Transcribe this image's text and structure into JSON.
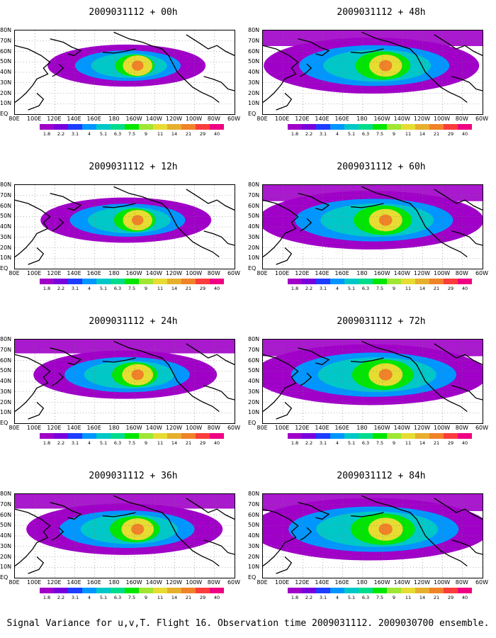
{
  "panels": [
    {
      "title": "2009031112 + 00h",
      "lead_hours": 0,
      "intensity": 0.55,
      "spread": 0.35
    },
    {
      "title": "2009031112 + 12h",
      "lead_hours": 12,
      "intensity": 0.55,
      "spread": 0.45
    },
    {
      "title": "2009031112 + 24h",
      "lead_hours": 24,
      "intensity": 0.62,
      "spread": 0.55
    },
    {
      "title": "2009031112 + 36h",
      "lead_hours": 36,
      "intensity": 0.68,
      "spread": 0.65
    },
    {
      "title": "2009031112 + 48h",
      "lead_hours": 48,
      "intensity": 0.7,
      "spread": 0.8
    },
    {
      "title": "2009031112 + 60h",
      "lead_hours": 60,
      "intensity": 0.72,
      "spread": 0.88
    },
    {
      "title": "2009031112 + 72h",
      "lead_hours": 72,
      "intensity": 0.75,
      "spread": 0.95
    },
    {
      "title": "2009031112 + 84h",
      "lead_hours": 84,
      "intensity": 0.78,
      "spread": 1.0
    }
  ],
  "lat_labels": [
    "80N",
    "70N",
    "60N",
    "50N",
    "40N",
    "30N",
    "20N",
    "10N",
    "EQ"
  ],
  "lon_labels": [
    "80E",
    "100E",
    "120E",
    "140E",
    "160E",
    "180",
    "160W",
    "140W",
    "120W",
    "100W",
    "80W",
    "60W"
  ],
  "colorbar": {
    "levels": [
      "1.8",
      "2.2",
      "3.1",
      "4",
      "5.1",
      "6.3",
      "7.5",
      "9",
      "11",
      "14",
      "21",
      "29",
      "40"
    ],
    "colors": [
      "#a000c8",
      "#7800dc",
      "#1e3cff",
      "#0096ff",
      "#00c8c8",
      "#00dc8c",
      "#00e600",
      "#a0e632",
      "#e6dc32",
      "#e6af2d",
      "#f08228",
      "#fa3c3c",
      "#f00082"
    ]
  },
  "caption": "Signal Variance for u,v,T. Flight 16. Observation time 2009031112. 2009030700 ensemble."
}
